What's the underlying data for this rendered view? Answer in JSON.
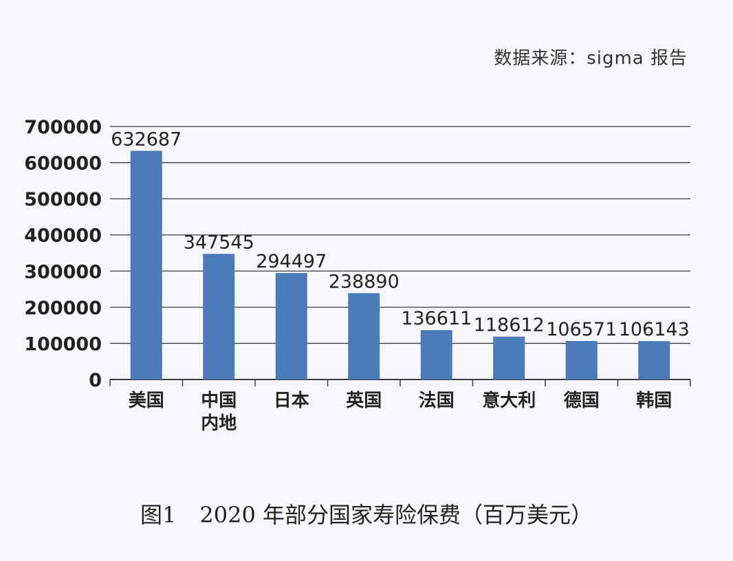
{
  "source": "数据来源：sigma 报告",
  "caption": {
    "figure": "图1",
    "text": "2020 年部分国家寿险保费（百万美元）"
  },
  "colors": {
    "bar": "#4a7ab8",
    "grid": "#3a3a3a"
  },
  "chart_data": {
    "type": "bar",
    "title": "2020 年部分国家寿险保费（百万美元）",
    "xlabel": "",
    "ylabel": "",
    "categories": [
      [
        "美国"
      ],
      [
        "中国",
        "内地"
      ],
      [
        "日本"
      ],
      [
        "英国"
      ],
      [
        "法国"
      ],
      [
        "意大利"
      ],
      [
        "德国"
      ],
      [
        "韩国"
      ]
    ],
    "values": [
      632687,
      347545,
      294497,
      238890,
      136611,
      118612,
      106571,
      106143
    ],
    "data_labels": [
      "632687",
      "347545",
      "294497",
      "238890",
      "136611",
      "118612",
      "106571",
      "106143"
    ],
    "yticks": [
      "0",
      "100000",
      "200000",
      "300000",
      "400000",
      "500000",
      "600000",
      "700000"
    ],
    "ylim": [
      0,
      700000
    ],
    "grid": true,
    "legend": "none"
  }
}
